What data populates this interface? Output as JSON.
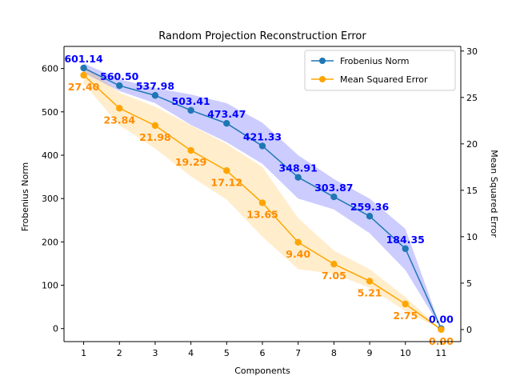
{
  "chart_data": {
    "type": "line",
    "title": "Random Projection Reconstruction Error",
    "xlabel": "Components",
    "ylabel_left": "Frobenius Norm",
    "ylabel_right": "Mean Squared Error",
    "x": [
      1,
      2,
      3,
      4,
      5,
      6,
      7,
      8,
      9,
      10,
      11
    ],
    "xlim": [
      0.45,
      11.55
    ],
    "ylim_left": [
      -30,
      651
    ],
    "ylim_right": [
      -1.3,
      30.5
    ],
    "yticks_left": [
      0,
      100,
      200,
      300,
      400,
      500,
      600
    ],
    "yticks_right": [
      0,
      5,
      10,
      15,
      20,
      25,
      30
    ],
    "grid": false,
    "legend": "top-right",
    "series": [
      {
        "name": "Frobenius Norm",
        "axis": "left",
        "color": "#1f77b4",
        "band_color": "#0000ff",
        "label_color": "#0000ff",
        "values": [
          601.14,
          560.5,
          537.98,
          503.41,
          473.47,
          421.33,
          348.91,
          303.87,
          259.36,
          184.35,
          0.0
        ],
        "labels": [
          "601.14",
          "560.50",
          "537.98",
          "503.41",
          "473.47",
          "421.33",
          "348.91",
          "303.87",
          "259.36",
          "184.35",
          "0.00"
        ],
        "band_lower": [
          590,
          548,
          520,
          470,
          430,
          380,
          300,
          275,
          220,
          135,
          0
        ],
        "band_upper": [
          612,
          575,
          555,
          540,
          520,
          475,
          400,
          345,
          300,
          230,
          0
        ]
      },
      {
        "name": "Mean Squared Error",
        "axis": "right",
        "color": "#ffa500",
        "band_color": "#ffa500",
        "label_color": "#ff8c00",
        "values": [
          27.4,
          23.84,
          21.98,
          19.29,
          17.12,
          13.65,
          9.4,
          7.05,
          5.21,
          2.75,
          0.0
        ],
        "labels": [
          "27.40",
          "23.84",
          "21.98",
          "19.29",
          "17.12",
          "13.65",
          "9.40",
          "7.05",
          "5.21",
          "2.75",
          "0.00"
        ],
        "band_lower": [
          26.5,
          22.0,
          19.5,
          16.5,
          14.0,
          10.0,
          6.5,
          6.0,
          4.5,
          2.0,
          0.0
        ],
        "band_upper": [
          28.5,
          25.5,
          24.0,
          22.0,
          20.0,
          17.5,
          12.0,
          8.5,
          6.5,
          3.5,
          0.0
        ]
      }
    ]
  }
}
